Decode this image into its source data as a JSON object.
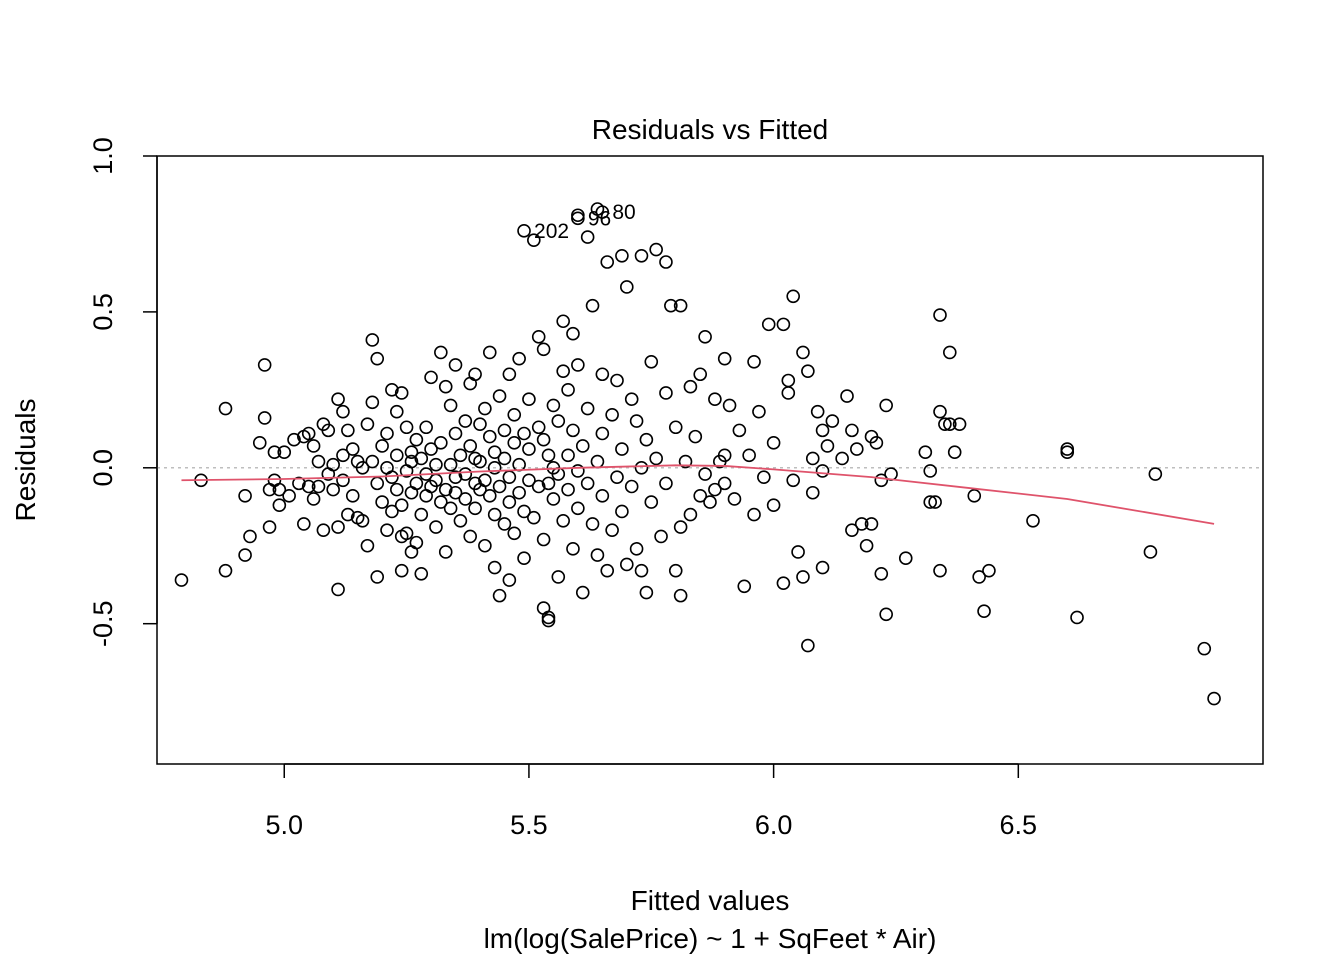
{
  "chart_data": {
    "type": "scatter",
    "title": "Residuals vs Fitted",
    "xlabel": "Fitted values",
    "subtitle": "lm(log(SalePrice) ~ 1 + SqFeet * Air)",
    "ylabel": "Residuals",
    "xlim": [
      4.74,
      7.0
    ],
    "ylim": [
      -0.95,
      1.0
    ],
    "x_ticks": [
      "5.0",
      "5.5",
      "6.0",
      "6.5"
    ],
    "y_ticks": [
      "-0.5",
      "0.0",
      "0.5",
      "1.0"
    ],
    "grid": false,
    "colors": {
      "points": "#000000",
      "smooth": "#DF536B",
      "zero_line": "#BEBEBE"
    },
    "labeled_points": [
      {
        "label": "202",
        "x": 5.49,
        "y": 0.76
      },
      {
        "label": "96",
        "x": 5.6,
        "y": 0.8
      },
      {
        "label": "80",
        "x": 5.65,
        "y": 0.82
      }
    ],
    "points": [
      [
        4.79,
        -0.36
      ],
      [
        4.83,
        -0.04
      ],
      [
        4.88,
        0.19
      ],
      [
        4.88,
        -0.33
      ],
      [
        4.92,
        -0.09
      ],
      [
        4.92,
        -0.28
      ],
      [
        4.93,
        -0.22
      ],
      [
        4.95,
        0.08
      ],
      [
        4.96,
        0.16
      ],
      [
        4.96,
        0.33
      ],
      [
        4.97,
        -0.07
      ],
      [
        4.97,
        -0.19
      ],
      [
        4.98,
        0.05
      ],
      [
        4.98,
        -0.04
      ],
      [
        4.99,
        -0.07
      ],
      [
        4.99,
        -0.12
      ],
      [
        5.0,
        0.05
      ],
      [
        5.01,
        -0.09
      ],
      [
        5.02,
        0.09
      ],
      [
        5.03,
        -0.05
      ],
      [
        5.04,
        -0.18
      ],
      [
        5.04,
        0.1
      ],
      [
        5.05,
        -0.06
      ],
      [
        5.05,
        0.11
      ],
      [
        5.06,
        -0.1
      ],
      [
        5.06,
        0.07
      ],
      [
        5.07,
        0.02
      ],
      [
        5.07,
        -0.06
      ],
      [
        5.08,
        0.14
      ],
      [
        5.08,
        -0.2
      ],
      [
        5.09,
        0.12
      ],
      [
        5.09,
        -0.02
      ],
      [
        5.1,
        0.01
      ],
      [
        5.1,
        -0.07
      ],
      [
        5.11,
        0.22
      ],
      [
        5.11,
        -0.19
      ],
      [
        5.11,
        -0.39
      ],
      [
        5.12,
        0.18
      ],
      [
        5.12,
        0.04
      ],
      [
        5.12,
        -0.04
      ],
      [
        5.13,
        -0.15
      ],
      [
        5.13,
        0.12
      ],
      [
        5.14,
        0.06
      ],
      [
        5.14,
        -0.09
      ],
      [
        5.15,
        0.02
      ],
      [
        5.15,
        -0.16
      ],
      [
        5.16,
        0.0
      ],
      [
        5.16,
        -0.17
      ],
      [
        5.17,
        0.14
      ],
      [
        5.17,
        -0.25
      ],
      [
        5.18,
        0.41
      ],
      [
        5.18,
        0.21
      ],
      [
        5.18,
        0.02
      ],
      [
        5.19,
        0.35
      ],
      [
        5.19,
        -0.35
      ],
      [
        5.19,
        -0.05
      ],
      [
        5.2,
        0.07
      ],
      [
        5.2,
        -0.11
      ],
      [
        5.21,
        0.11
      ],
      [
        5.21,
        -0.2
      ],
      [
        5.21,
        0.0
      ],
      [
        5.22,
        0.25
      ],
      [
        5.22,
        -0.03
      ],
      [
        5.22,
        -0.14
      ],
      [
        5.23,
        0.18
      ],
      [
        5.23,
        -0.07
      ],
      [
        5.23,
        0.04
      ],
      [
        5.24,
        0.24
      ],
      [
        5.24,
        -0.33
      ],
      [
        5.24,
        -0.12
      ],
      [
        5.25,
        0.13
      ],
      [
        5.25,
        -0.01
      ],
      [
        5.25,
        -0.21
      ],
      [
        5.26,
        0.05
      ],
      [
        5.26,
        -0.08
      ],
      [
        5.26,
        0.02
      ],
      [
        5.27,
        -0.24
      ],
      [
        5.27,
        0.09
      ],
      [
        5.27,
        -0.05
      ],
      [
        5.28,
        0.03
      ],
      [
        5.28,
        -0.15
      ],
      [
        5.28,
        -0.34
      ],
      [
        5.29,
        -0.02
      ],
      [
        5.29,
        0.13
      ],
      [
        5.29,
        -0.09
      ],
      [
        5.3,
        0.29
      ],
      [
        5.3,
        -0.06
      ],
      [
        5.3,
        0.06
      ],
      [
        5.31,
        0.01
      ],
      [
        5.31,
        -0.19
      ],
      [
        5.31,
        -0.04
      ],
      [
        5.32,
        -0.11
      ],
      [
        5.32,
        0.08
      ],
      [
        5.33,
        0.26
      ],
      [
        5.33,
        -0.27
      ],
      [
        5.33,
        -0.07
      ],
      [
        5.34,
        0.2
      ],
      [
        5.34,
        0.01
      ],
      [
        5.34,
        -0.13
      ],
      [
        5.35,
        -0.03
      ],
      [
        5.35,
        0.11
      ],
      [
        5.35,
        -0.08
      ],
      [
        5.36,
        0.04
      ],
      [
        5.36,
        -0.17
      ],
      [
        5.37,
        0.15
      ],
      [
        5.37,
        -0.02
      ],
      [
        5.37,
        -0.1
      ],
      [
        5.38,
        0.27
      ],
      [
        5.38,
        0.07
      ],
      [
        5.38,
        -0.22
      ],
      [
        5.39,
        -0.05
      ],
      [
        5.39,
        0.03
      ],
      [
        5.39,
        -0.13
      ],
      [
        5.4,
        0.14
      ],
      [
        5.4,
        -0.07
      ],
      [
        5.4,
        0.02
      ],
      [
        5.41,
        -0.04
      ],
      [
        5.41,
        0.19
      ],
      [
        5.41,
        -0.25
      ],
      [
        5.42,
        0.1
      ],
      [
        5.42,
        -0.09
      ],
      [
        5.42,
        0.37
      ],
      [
        5.43,
        0.0
      ],
      [
        5.43,
        -0.15
      ],
      [
        5.43,
        0.05
      ],
      [
        5.44,
        0.23
      ],
      [
        5.44,
        -0.06
      ],
      [
        5.44,
        -0.41
      ],
      [
        5.45,
        0.12
      ],
      [
        5.45,
        -0.18
      ],
      [
        5.45,
        0.03
      ],
      [
        5.46,
        0.3
      ],
      [
        5.46,
        -0.11
      ],
      [
        5.46,
        -0.03
      ],
      [
        5.47,
        0.08
      ],
      [
        5.47,
        -0.21
      ],
      [
        5.47,
        0.17
      ],
      [
        5.48,
        -0.08
      ],
      [
        5.48,
        0.01
      ],
      [
        5.48,
        0.35
      ],
      [
        5.49,
        -0.14
      ],
      [
        5.49,
        0.11
      ],
      [
        5.49,
        -0.29
      ],
      [
        5.5,
        0.06
      ],
      [
        5.5,
        -0.04
      ],
      [
        5.5,
        0.22
      ],
      [
        5.51,
        0.73
      ],
      [
        5.51,
        -0.16
      ],
      [
        5.52,
        0.13
      ],
      [
        5.52,
        -0.06
      ],
      [
        5.52,
        0.42
      ],
      [
        5.53,
        0.09
      ],
      [
        5.53,
        -0.23
      ],
      [
        5.53,
        0.38
      ],
      [
        5.54,
        -0.05
      ],
      [
        5.54,
        0.04
      ],
      [
        5.54,
        -0.48
      ],
      [
        5.55,
        0.2
      ],
      [
        5.55,
        -0.1
      ],
      [
        5.55,
        0.0
      ],
      [
        5.56,
        -0.35
      ],
      [
        5.56,
        0.15
      ],
      [
        5.56,
        -0.02
      ],
      [
        5.57,
        0.47
      ],
      [
        5.57,
        0.31
      ],
      [
        5.57,
        -0.17
      ],
      [
        5.58,
        0.04
      ],
      [
        5.58,
        -0.07
      ],
      [
        5.58,
        0.25
      ],
      [
        5.59,
        -0.26
      ],
      [
        5.59,
        0.12
      ],
      [
        5.59,
        0.43
      ],
      [
        5.6,
        -0.01
      ],
      [
        5.6,
        -0.13
      ],
      [
        5.6,
        0.33
      ],
      [
        5.61,
        0.07
      ],
      [
        5.61,
        -0.4
      ],
      [
        5.62,
        0.19
      ],
      [
        5.62,
        -0.05
      ],
      [
        5.62,
        0.74
      ],
      [
        5.63,
        0.52
      ],
      [
        5.63,
        -0.18
      ],
      [
        5.64,
        0.02
      ],
      [
        5.64,
        -0.28
      ],
      [
        5.65,
        0.3
      ],
      [
        5.65,
        -0.09
      ],
      [
        5.65,
        0.11
      ],
      [
        5.66,
        0.66
      ],
      [
        5.66,
        -0.33
      ],
      [
        5.67,
        0.17
      ],
      [
        5.67,
        -0.2
      ],
      [
        5.68,
        -0.03
      ],
      [
        5.68,
        0.28
      ],
      [
        5.69,
        0.06
      ],
      [
        5.69,
        -0.14
      ],
      [
        5.7,
        0.58
      ],
      [
        5.7,
        -0.31
      ],
      [
        5.71,
        0.22
      ],
      [
        5.71,
        -0.06
      ],
      [
        5.72,
        0.15
      ],
      [
        5.72,
        -0.26
      ],
      [
        5.73,
        0.0
      ],
      [
        5.73,
        0.68
      ],
      [
        5.74,
        -0.4
      ],
      [
        5.74,
        0.09
      ],
      [
        5.75,
        0.34
      ],
      [
        5.75,
        -0.11
      ],
      [
        5.76,
        0.7
      ],
      [
        5.76,
        0.03
      ],
      [
        5.77,
        -0.22
      ],
      [
        5.78,
        0.24
      ],
      [
        5.78,
        -0.05
      ],
      [
        5.79,
        0.52
      ],
      [
        5.8,
        0.13
      ],
      [
        5.8,
        -0.33
      ],
      [
        5.81,
        -0.19
      ],
      [
        5.81,
        0.52
      ],
      [
        5.82,
        0.02
      ],
      [
        5.83,
        -0.15
      ],
      [
        5.83,
        0.26
      ],
      [
        5.84,
        0.1
      ],
      [
        5.85,
        -0.09
      ],
      [
        5.85,
        0.3
      ],
      [
        5.86,
        0.42
      ],
      [
        5.87,
        -0.11
      ],
      [
        5.88,
        0.22
      ],
      [
        5.88,
        -0.07
      ],
      [
        5.89,
        0.02
      ],
      [
        5.9,
        0.35
      ],
      [
        5.9,
        -0.05
      ],
      [
        5.91,
        0.2
      ],
      [
        5.92,
        -0.1
      ],
      [
        5.93,
        0.12
      ],
      [
        5.94,
        -0.38
      ],
      [
        5.95,
        0.04
      ],
      [
        5.96,
        0.34
      ],
      [
        5.96,
        -0.15
      ],
      [
        5.97,
        0.18
      ],
      [
        5.98,
        -0.03
      ],
      [
        5.99,
        0.46
      ],
      [
        6.0,
        0.08
      ],
      [
        6.0,
        -0.12
      ],
      [
        6.02,
        0.46
      ],
      [
        6.02,
        -0.37
      ],
      [
        6.03,
        0.24
      ],
      [
        6.04,
        0.55
      ],
      [
        6.04,
        -0.04
      ],
      [
        6.05,
        -0.27
      ],
      [
        6.06,
        0.37
      ],
      [
        6.06,
        -0.35
      ],
      [
        6.07,
        0.31
      ],
      [
        6.07,
        -0.57
      ],
      [
        6.08,
        0.03
      ],
      [
        6.08,
        -0.08
      ],
      [
        6.09,
        0.18
      ],
      [
        6.1,
        -0.32
      ],
      [
        6.1,
        0.12
      ],
      [
        6.11,
        0.07
      ],
      [
        6.12,
        0.15
      ],
      [
        6.14,
        0.03
      ],
      [
        6.15,
        0.23
      ],
      [
        6.16,
        -0.2
      ],
      [
        6.16,
        0.12
      ],
      [
        6.17,
        0.06
      ],
      [
        6.18,
        -0.18
      ],
      [
        6.19,
        -0.25
      ],
      [
        6.2,
        0.1
      ],
      [
        6.2,
        -0.18
      ],
      [
        6.21,
        0.08
      ],
      [
        6.22,
        -0.04
      ],
      [
        6.22,
        -0.34
      ],
      [
        6.23,
        0.2
      ],
      [
        6.23,
        -0.47
      ],
      [
        6.24,
        -0.02
      ],
      [
        6.27,
        -0.29
      ],
      [
        6.31,
        0.05
      ],
      [
        6.32,
        -0.01
      ],
      [
        6.33,
        -0.11
      ],
      [
        6.34,
        0.49
      ],
      [
        6.34,
        0.18
      ],
      [
        6.34,
        -0.33
      ],
      [
        6.35,
        0.14
      ],
      [
        6.36,
        0.37
      ],
      [
        6.37,
        0.05
      ],
      [
        6.38,
        0.14
      ],
      [
        6.41,
        -0.09
      ],
      [
        6.42,
        -0.35
      ],
      [
        6.43,
        -0.46
      ],
      [
        6.44,
        -0.33
      ],
      [
        6.53,
        -0.17
      ],
      [
        6.6,
        0.06
      ],
      [
        6.6,
        0.05
      ],
      [
        6.62,
        -0.48
      ],
      [
        6.77,
        -0.27
      ],
      [
        6.78,
        -0.02
      ],
      [
        6.88,
        -0.58
      ],
      [
        6.9,
        -0.74
      ],
      [
        5.24,
        -0.22
      ],
      [
        5.26,
        -0.27
      ],
      [
        5.32,
        0.37
      ],
      [
        5.35,
        0.33
      ],
      [
        5.39,
        0.3
      ],
      [
        5.43,
        -0.32
      ],
      [
        5.46,
        -0.36
      ],
      [
        5.53,
        -0.45
      ],
      [
        5.54,
        -0.49
      ],
      [
        5.6,
        0.81
      ],
      [
        5.64,
        0.83
      ],
      [
        5.69,
        0.68
      ],
      [
        5.73,
        -0.33
      ],
      [
        5.78,
        0.66
      ],
      [
        5.81,
        -0.41
      ],
      [
        5.86,
        -0.02
      ],
      [
        5.9,
        0.04
      ],
      [
        6.03,
        0.28
      ],
      [
        6.1,
        -0.01
      ],
      [
        6.32,
        -0.11
      ],
      [
        6.36,
        0.14
      ]
    ],
    "smooth_line": {
      "x": [
        4.79,
        5.0,
        5.2,
        5.4,
        5.6,
        5.8,
        5.9,
        6.0,
        6.2,
        6.4,
        6.6,
        6.9
      ],
      "y": [
        -0.04,
        -0.036,
        -0.028,
        -0.012,
        0.0,
        0.008,
        0.006,
        -0.005,
        -0.03,
        -0.065,
        -0.1,
        -0.18
      ]
    }
  }
}
